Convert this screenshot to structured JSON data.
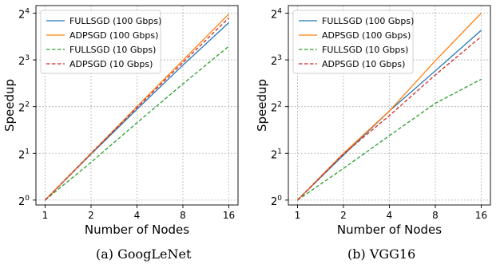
{
  "chart_data": [
    {
      "type": "line",
      "caption": "(a) GoogLeNet",
      "xlabel": "Number of Nodes",
      "ylabel": "Speedup",
      "xscale": "log2",
      "yscale": "log2",
      "x": [
        1,
        2,
        4,
        8,
        16
      ],
      "xticks": [
        "1",
        "2",
        "4",
        "8",
        "16"
      ],
      "yticks": [
        {
          "base": "2",
          "exp": "0"
        },
        {
          "base": "2",
          "exp": "1"
        },
        {
          "base": "2",
          "exp": "2"
        },
        {
          "base": "2",
          "exp": "3"
        },
        {
          "base": "2",
          "exp": "4"
        }
      ],
      "ylim": [
        0.93,
        17.9
      ],
      "grid": true,
      "legend_position": "top-left",
      "series": [
        {
          "name": "FULLSGD (100 Gbps)",
          "color": "#1f77b4",
          "dash": "solid",
          "values": [
            1,
            1.98,
            3.85,
            7.4,
            13.9
          ]
        },
        {
          "name": "ADPSGD (100 Gbps)",
          "color": "#ff7f0e",
          "dash": "solid",
          "values": [
            1,
            2.0,
            4.0,
            7.95,
            15.8
          ]
        },
        {
          "name": "FULLSGD (10 Gbps)",
          "color": "#2ca02c",
          "dash": "dashed",
          "values": [
            1,
            1.75,
            3.15,
            5.6,
            9.8
          ]
        },
        {
          "name": "ADPSGD (10 Gbps)",
          "color": "#d62728",
          "dash": "dashed",
          "values": [
            1,
            2.0,
            3.95,
            7.7,
            14.9
          ]
        }
      ]
    },
    {
      "type": "line",
      "caption": "(b) VGG16",
      "xlabel": "Number of Nodes",
      "ylabel": "Speedup",
      "xscale": "log2",
      "yscale": "log2",
      "x": [
        1,
        2,
        4,
        8,
        16
      ],
      "xticks": [
        "1",
        "2",
        "4",
        "8",
        "16"
      ],
      "yticks": [
        {
          "base": "2",
          "exp": "0"
        },
        {
          "base": "2",
          "exp": "1"
        },
        {
          "base": "2",
          "exp": "2"
        },
        {
          "base": "2",
          "exp": "3"
        },
        {
          "base": "2",
          "exp": "4"
        }
      ],
      "ylim": [
        0.93,
        17.9
      ],
      "grid": true,
      "legend_position": "top-left",
      "series": [
        {
          "name": "FULLSGD (100 Gbps)",
          "color": "#1f77b4",
          "dash": "solid",
          "values": [
            1,
            1.95,
            3.75,
            6.8,
            12.4
          ]
        },
        {
          "name": "ADPSGD (100 Gbps)",
          "color": "#ff7f0e",
          "dash": "solid",
          "values": [
            1,
            2.0,
            3.75,
            7.9,
            16.0
          ]
        },
        {
          "name": "FULLSGD (10 Gbps)",
          "color": "#2ca02c",
          "dash": "dashed",
          "values": [
            1,
            1.6,
            2.6,
            4.2,
            6.0
          ]
        },
        {
          "name": "ADPSGD (10 Gbps)",
          "color": "#d62728",
          "dash": "dashed",
          "values": [
            1,
            1.98,
            3.5,
            6.4,
            11.3
          ]
        }
      ]
    }
  ]
}
